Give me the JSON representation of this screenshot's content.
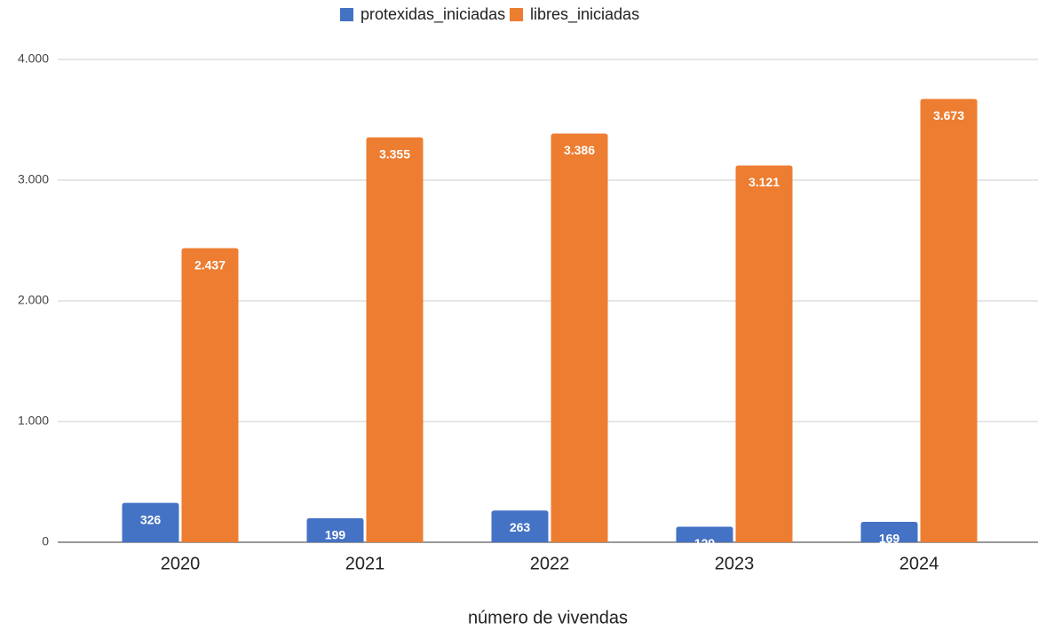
{
  "chart_data": {
    "type": "bar",
    "x_label": "número de vivendas",
    "categories": [
      "2020",
      "2021",
      "2022",
      "2023",
      "2024"
    ],
    "series": [
      {
        "name": "protexidas_iniciadas",
        "color": "#4472c4",
        "values": [
          326,
          199,
          263,
          129,
          169
        ]
      },
      {
        "name": "libres_iniciadas",
        "color": "#ed7d31",
        "values": [
          2437,
          3355,
          3386,
          3121,
          3673
        ],
        "value_labels": [
          "2.437",
          "3.355",
          "3.386",
          "3.121",
          "3.673"
        ]
      }
    ],
    "ylim": [
      0,
      4000
    ],
    "yticks": [
      {
        "value": 0,
        "label": "0"
      },
      {
        "value": 1000,
        "label": "1.000"
      },
      {
        "value": 2000,
        "label": "2.000"
      },
      {
        "value": 3000,
        "label": "3.000"
      },
      {
        "value": 4000,
        "label": "4.000"
      }
    ],
    "grid": true,
    "legend": "top"
  }
}
